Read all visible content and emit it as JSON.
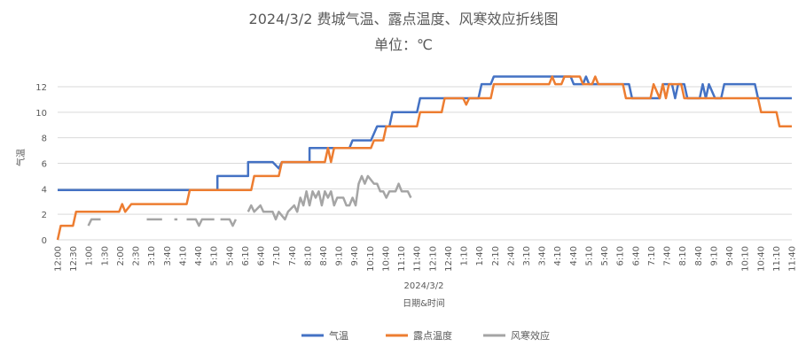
{
  "chart_data": {
    "type": "line",
    "title": "2024/3/2 费城气温、露点温度、风寒效应折线图",
    "subtitle": "单位：℃",
    "xlabel": "日期&时间",
    "x_group_label": "2024/3/2",
    "ylabel": "气温",
    "ylim": [
      0,
      12
    ],
    "yticks": [
      0,
      2,
      4,
      6,
      8,
      10,
      12
    ],
    "grid": true,
    "legend_position": "bottom",
    "x_range_hours": [
      0,
      23.9
    ],
    "x_tick_labels": [
      "12:00",
      "12:30",
      "1:00",
      "1:30",
      "2:00",
      "2:30",
      "3:10",
      "3:40",
      "4:10",
      "4:40",
      "5:10",
      "5:40",
      "6:10",
      "6:40",
      "7:10",
      "7:40",
      "8:10",
      "8:40",
      "9:10",
      "9:40",
      "10:10",
      "10:40",
      "11:10",
      "11:40",
      "12:10",
      "12:40",
      "1:10",
      "1:40",
      "2:10",
      "2:40",
      "3:10",
      "3:40",
      "4:10",
      "4:40",
      "5:10",
      "5:40",
      "6:10",
      "6:40",
      "7:10",
      "7:40",
      "8:10",
      "8:40",
      "9:10",
      "9:40",
      "10:10",
      "10:40",
      "11:10",
      "11:40"
    ],
    "series": [
      {
        "name": "气温",
        "color": "#4472C4",
        "points": [
          [
            0,
            3.9
          ],
          [
            4.4,
            3.9
          ],
          [
            5.2,
            3.9
          ],
          [
            5.2,
            5.0
          ],
          [
            6.2,
            5.0
          ],
          [
            6.2,
            6.1
          ],
          [
            7.0,
            6.1
          ],
          [
            7.2,
            5.6
          ],
          [
            7.3,
            6.1
          ],
          [
            8.2,
            6.1
          ],
          [
            8.2,
            7.2
          ],
          [
            9.5,
            7.2
          ],
          [
            9.6,
            7.8
          ],
          [
            10.2,
            7.8
          ],
          [
            10.4,
            8.9
          ],
          [
            10.8,
            8.9
          ],
          [
            10.9,
            10.0
          ],
          [
            11.7,
            10.0
          ],
          [
            11.8,
            11.1
          ],
          [
            13.0,
            11.1
          ],
          [
            13.7,
            11.1
          ],
          [
            13.8,
            12.2
          ],
          [
            14.1,
            12.2
          ],
          [
            14.2,
            12.8
          ],
          [
            16.7,
            12.8
          ],
          [
            16.8,
            12.2
          ],
          [
            17.1,
            12.2
          ],
          [
            17.2,
            12.8
          ],
          [
            17.3,
            12.2
          ],
          [
            18.6,
            12.2
          ],
          [
            18.7,
            11.1
          ],
          [
            19.6,
            11.1
          ],
          [
            19.7,
            12.2
          ],
          [
            20.0,
            12.2
          ],
          [
            20.1,
            11.1
          ],
          [
            20.2,
            12.2
          ],
          [
            20.4,
            12.2
          ],
          [
            20.5,
            11.1
          ],
          [
            20.9,
            11.1
          ],
          [
            21.0,
            12.2
          ],
          [
            21.1,
            11.1
          ],
          [
            21.2,
            12.2
          ],
          [
            21.4,
            11.1
          ],
          [
            21.6,
            11.1
          ],
          [
            21.7,
            12.2
          ],
          [
            22.7,
            12.2
          ],
          [
            22.8,
            11.1
          ],
          [
            23.9,
            11.1
          ]
        ]
      },
      {
        "name": "露点温度",
        "color": "#ED7D31",
        "points": [
          [
            0,
            0
          ],
          [
            0.1,
            1.1
          ],
          [
            0.5,
            1.1
          ],
          [
            0.6,
            2.2
          ],
          [
            2.0,
            2.2
          ],
          [
            2.1,
            2.8
          ],
          [
            2.2,
            2.2
          ],
          [
            2.4,
            2.8
          ],
          [
            4.2,
            2.8
          ],
          [
            4.3,
            3.9
          ],
          [
            6.3,
            3.9
          ],
          [
            6.4,
            5.0
          ],
          [
            7.2,
            5.0
          ],
          [
            7.3,
            6.1
          ],
          [
            8.7,
            6.1
          ],
          [
            8.8,
            7.2
          ],
          [
            8.9,
            6.1
          ],
          [
            9.0,
            7.2
          ],
          [
            9.2,
            7.2
          ],
          [
            10.2,
            7.2
          ],
          [
            10.3,
            7.8
          ],
          [
            10.6,
            7.8
          ],
          [
            10.7,
            8.9
          ],
          [
            11.7,
            8.9
          ],
          [
            11.8,
            10.0
          ],
          [
            12.5,
            10.0
          ],
          [
            12.6,
            11.1
          ],
          [
            13.2,
            11.1
          ],
          [
            13.3,
            10.6
          ],
          [
            13.4,
            11.1
          ],
          [
            14.1,
            11.1
          ],
          [
            14.2,
            12.2
          ],
          [
            16.0,
            12.2
          ],
          [
            16.1,
            12.8
          ],
          [
            16.2,
            12.2
          ],
          [
            16.4,
            12.2
          ],
          [
            16.5,
            12.8
          ],
          [
            17.0,
            12.8
          ],
          [
            17.1,
            12.2
          ],
          [
            17.4,
            12.2
          ],
          [
            17.5,
            12.8
          ],
          [
            17.6,
            12.2
          ],
          [
            18.4,
            12.2
          ],
          [
            18.5,
            11.1
          ],
          [
            19.3,
            11.1
          ],
          [
            19.4,
            12.2
          ],
          [
            19.6,
            11.1
          ],
          [
            19.7,
            12.2
          ],
          [
            19.8,
            11.1
          ],
          [
            19.9,
            12.2
          ],
          [
            20.3,
            12.2
          ],
          [
            20.4,
            11.1
          ],
          [
            21.5,
            11.1
          ],
          [
            21.7,
            11.1
          ],
          [
            22.3,
            11.1
          ],
          [
            22.5,
            11.1
          ],
          [
            22.8,
            11.1
          ],
          [
            22.9,
            10.0
          ],
          [
            23.4,
            10.0
          ],
          [
            23.5,
            8.9
          ],
          [
            23.9,
            8.9
          ]
        ]
      },
      {
        "name": "风寒效应",
        "color": "#A5A5A5",
        "segments": [
          [
            [
              1.0,
              1.1
            ],
            [
              1.1,
              1.6
            ],
            [
              1.4,
              1.6
            ]
          ],
          [
            [
              2.9,
              1.6
            ],
            [
              3.4,
              1.6
            ]
          ],
          [
            [
              3.8,
              1.6
            ],
            [
              3.9,
              1.6
            ]
          ],
          [
            [
              4.2,
              1.6
            ],
            [
              4.5,
              1.6
            ],
            [
              4.6,
              1.1
            ],
            [
              4.7,
              1.6
            ],
            [
              5.1,
              1.6
            ]
          ],
          [
            [
              5.3,
              1.6
            ],
            [
              5.6,
              1.6
            ],
            [
              5.7,
              1.1
            ],
            [
              5.8,
              1.6
            ]
          ],
          [
            [
              6.2,
              2.2
            ],
            [
              6.3,
              2.7
            ],
            [
              6.4,
              2.2
            ],
            [
              6.6,
              2.7
            ],
            [
              6.7,
              2.2
            ],
            [
              7.0,
              2.2
            ],
            [
              7.1,
              1.6
            ],
            [
              7.2,
              2.2
            ],
            [
              7.4,
              1.6
            ],
            [
              7.5,
              2.2
            ],
            [
              7.7,
              2.7
            ],
            [
              7.8,
              2.2
            ],
            [
              7.9,
              3.3
            ],
            [
              8.0,
              2.7
            ],
            [
              8.1,
              3.8
            ],
            [
              8.2,
              2.7
            ],
            [
              8.3,
              3.8
            ],
            [
              8.4,
              3.3
            ],
            [
              8.5,
              3.8
            ],
            [
              8.6,
              2.7
            ],
            [
              8.7,
              3.8
            ],
            [
              8.8,
              3.3
            ],
            [
              8.9,
              3.8
            ],
            [
              9.0,
              2.7
            ],
            [
              9.1,
              3.3
            ],
            [
              9.3,
              3.3
            ],
            [
              9.4,
              2.7
            ],
            [
              9.5,
              2.7
            ],
            [
              9.6,
              3.3
            ],
            [
              9.7,
              2.7
            ],
            [
              9.8,
              4.4
            ],
            [
              9.9,
              5.0
            ],
            [
              10.0,
              4.4
            ],
            [
              10.1,
              5.0
            ],
            [
              10.3,
              4.4
            ],
            [
              10.4,
              4.4
            ],
            [
              10.5,
              3.8
            ],
            [
              10.6,
              3.8
            ],
            [
              10.7,
              3.3
            ],
            [
              10.8,
              3.8
            ],
            [
              11.0,
              3.8
            ],
            [
              11.1,
              4.4
            ],
            [
              11.2,
              3.8
            ],
            [
              11.4,
              3.8
            ],
            [
              11.5,
              3.3
            ]
          ]
        ]
      }
    ]
  }
}
